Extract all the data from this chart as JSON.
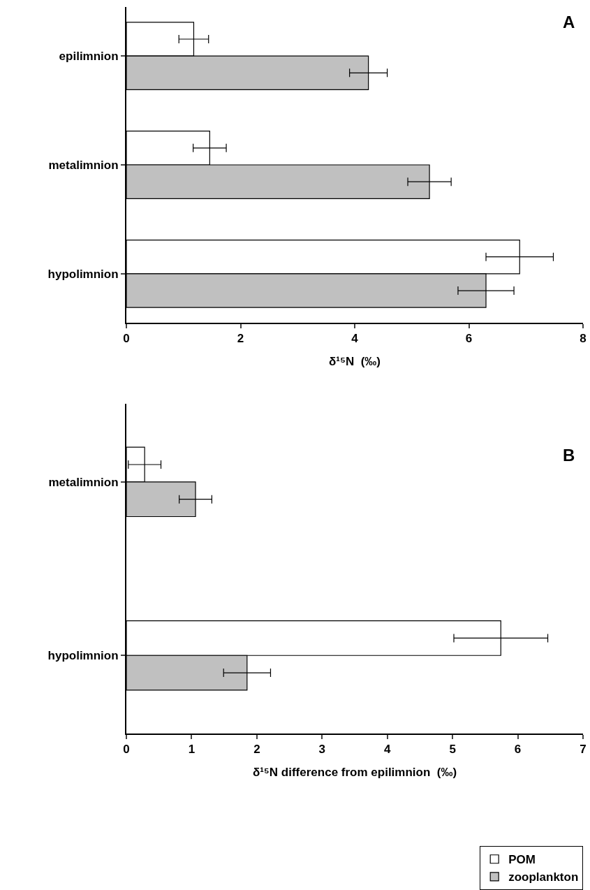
{
  "chart_data": [
    {
      "type": "bar",
      "orientation": "horizontal",
      "categories": [
        "epilimnion",
        "metalimnion",
        "hypolimnion"
      ],
      "series": [
        {
          "name": "POM",
          "color": "#ffffff",
          "values": [
            1.18,
            1.46,
            6.89
          ],
          "errors": [
            0.26,
            0.29,
            0.59
          ]
        },
        {
          "name": "zooplankton",
          "color": "#c0c0c0",
          "values": [
            4.24,
            5.31,
            6.3
          ],
          "errors": [
            0.33,
            0.38,
            0.49
          ]
        }
      ],
      "xlabel": "δ¹⁵N  (‰)",
      "xlim": [
        0,
        8
      ],
      "xticks": [
        0,
        2,
        4,
        6,
        8
      ],
      "annotations": [
        "A"
      ],
      "legend": "bottom right"
    },
    {
      "type": "bar",
      "orientation": "horizontal",
      "categories": [
        "metalimnion",
        "hypolimnion"
      ],
      "series": [
        {
          "color": "#ffffff",
          "values": [
            0.28,
            5.74
          ],
          "errors": [
            0.25,
            0.72
          ]
        },
        {
          "color": "#c0c0c0",
          "values": [
            1.06,
            1.85
          ],
          "errors": [
            0.25,
            0.36
          ]
        }
      ],
      "xlabel": "δ¹⁵N difference from epilimnion  (‰)",
      "xlim": [
        0,
        7
      ],
      "xticks": [
        0,
        1,
        2,
        3,
        4,
        5,
        6,
        7
      ],
      "annotations": [
        "B"
      ]
    }
  ]
}
